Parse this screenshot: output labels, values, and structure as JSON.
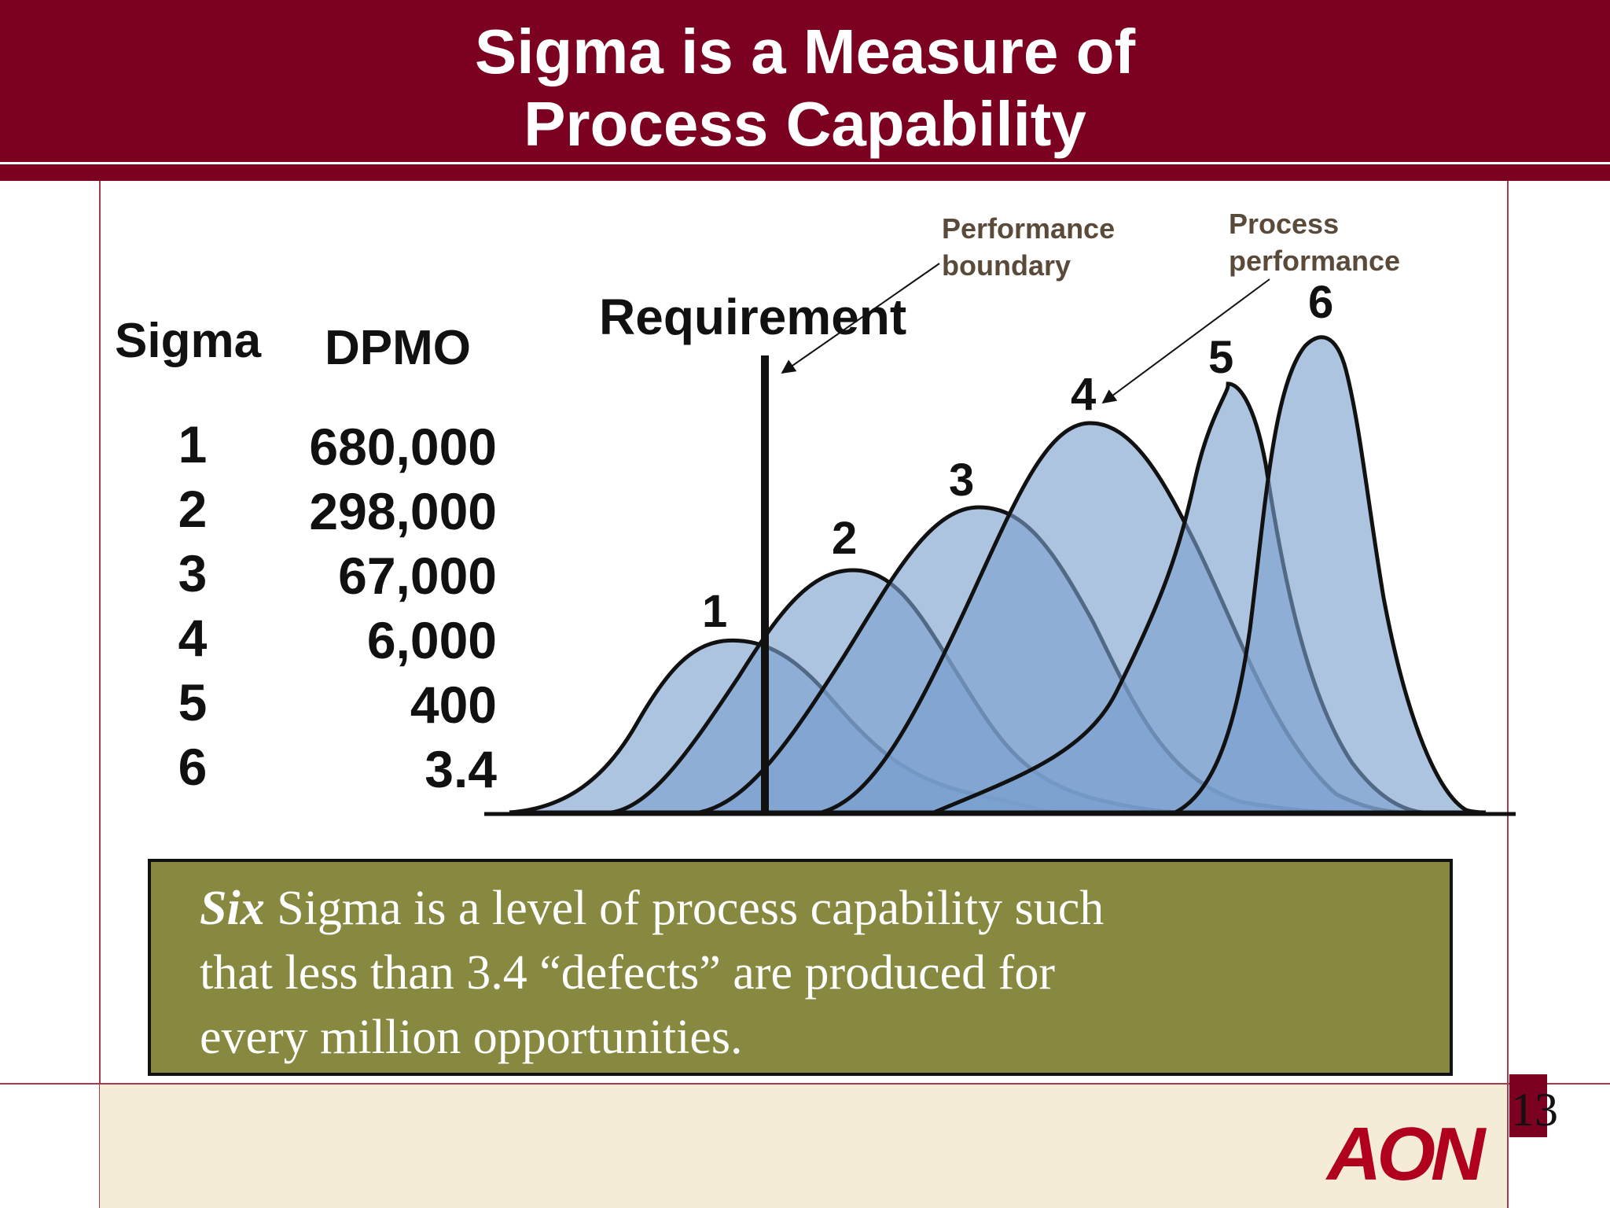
{
  "title": {
    "line1": "Sigma is a Measure of",
    "line2": "Process Capability"
  },
  "table": {
    "sigma_header": "Sigma",
    "dpmo_header": "DPMO",
    "rows": [
      {
        "sigma": "1",
        "dpmo": "680,000"
      },
      {
        "sigma": "2",
        "dpmo": "298,000"
      },
      {
        "sigma": "3",
        "dpmo": "67,000"
      },
      {
        "sigma": "4",
        "dpmo": "6,000"
      },
      {
        "sigma": "5",
        "dpmo": "400"
      },
      {
        "sigma": "6",
        "dpmo": "3.4"
      }
    ]
  },
  "diagram": {
    "requirement_label": "Requirement",
    "performance_boundary_label": [
      "Performance",
      "boundary"
    ],
    "process_performance_label": [
      "Process",
      "performance"
    ],
    "curve_labels": [
      "1",
      "2",
      "3",
      "4",
      "5",
      "6"
    ],
    "curve_fill": "#7b9fcf",
    "curve_stroke": "#111111"
  },
  "callout": {
    "emphasis": "Six",
    "line1_rest": " Sigma is a level of process capability such",
    "line2": "that less than 3.4 “defects” are produced for",
    "line3": "every million opportunities."
  },
  "page_number": "13",
  "logo_text": "AON",
  "colors": {
    "brand": "#7c0020",
    "callout_bg": "#86893f",
    "footer_bg": "#f5ecd8",
    "logo": "#b1001e"
  }
}
